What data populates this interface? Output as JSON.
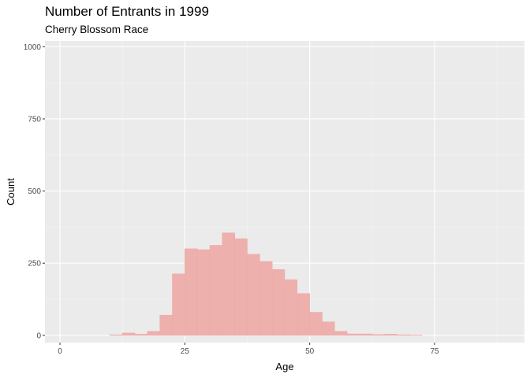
{
  "chart_data": {
    "type": "bar",
    "title": "Number of Entrants in 1999",
    "subtitle": "Cherry Blossom Race",
    "xlabel": "Age",
    "ylabel": "Count",
    "xlim": [
      -3,
      93
    ],
    "ylim": [
      -25,
      1020
    ],
    "x_ticks": [
      0,
      25,
      50,
      75
    ],
    "y_ticks": [
      0,
      250,
      500,
      750,
      1000
    ],
    "x_minor": [
      12.5,
      37.5,
      62.5,
      87.5
    ],
    "y_minor": [
      125,
      375,
      625,
      875
    ],
    "bin_width": 2.5,
    "bars": [
      {
        "x0": 10.0,
        "count": 2
      },
      {
        "x0": 12.5,
        "count": 8
      },
      {
        "x0": 15.0,
        "count": 4
      },
      {
        "x0": 17.5,
        "count": 14
      },
      {
        "x0": 20.0,
        "count": 70
      },
      {
        "x0": 22.5,
        "count": 213
      },
      {
        "x0": 25.0,
        "count": 300
      },
      {
        "x0": 27.5,
        "count": 297
      },
      {
        "x0": 30.0,
        "count": 312
      },
      {
        "x0": 32.5,
        "count": 355
      },
      {
        "x0": 35.0,
        "count": 335
      },
      {
        "x0": 37.5,
        "count": 281
      },
      {
        "x0": 40.0,
        "count": 256
      },
      {
        "x0": 42.5,
        "count": 228
      },
      {
        "x0": 45.0,
        "count": 193
      },
      {
        "x0": 47.5,
        "count": 145
      },
      {
        "x0": 50.0,
        "count": 80
      },
      {
        "x0": 52.5,
        "count": 47
      },
      {
        "x0": 55.0,
        "count": 14
      },
      {
        "x0": 57.5,
        "count": 5
      },
      {
        "x0": 60.0,
        "count": 5
      },
      {
        "x0": 62.5,
        "count": 3
      },
      {
        "x0": 65.0,
        "count": 4
      },
      {
        "x0": 67.5,
        "count": 2
      },
      {
        "x0": 70.0,
        "count": 1
      }
    ],
    "colors": {
      "panel": "#ebebeb",
      "grid_major": "#ffffff",
      "grid_minor": "#f5f5f5",
      "bar_fill": "#eeb0ad",
      "bar_stroke": "#ecaaa7"
    },
    "grid": true,
    "legend": "none"
  }
}
